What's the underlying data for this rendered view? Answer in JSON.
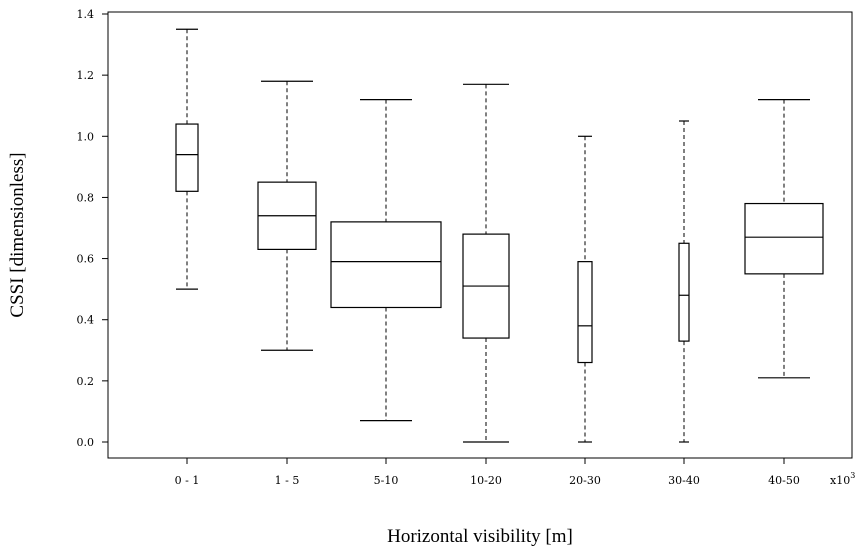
{
  "chart_data": {
    "type": "box",
    "xlabel": "Horizontal visibility [m]",
    "ylabel": "CSSI [dimensionless]",
    "x_multiplier": {
      "base": "x10",
      "exp": "3"
    },
    "ylim": [
      0.0,
      1.4
    ],
    "yticks": [
      "0.0",
      "0.2",
      "0.4",
      "0.6",
      "0.8",
      "1.0",
      "1.2",
      "1.4"
    ],
    "categories": [
      "0 - 1",
      "1 - 5",
      "5-10",
      "10-20",
      "20-30",
      "30-40",
      "40-50"
    ],
    "boxes": [
      {
        "category": "0 - 1",
        "min": 0.5,
        "q1": 0.82,
        "median": 0.94,
        "q3": 1.04,
        "max": 1.35
      },
      {
        "category": "1 - 5",
        "min": 0.3,
        "q1": 0.63,
        "median": 0.74,
        "q3": 0.85,
        "max": 1.18
      },
      {
        "category": "5-10",
        "min": 0.07,
        "q1": 0.44,
        "median": 0.59,
        "q3": 0.72,
        "max": 1.12
      },
      {
        "category": "10-20",
        "min": 0.0,
        "q1": 0.34,
        "median": 0.51,
        "q3": 0.68,
        "max": 1.17
      },
      {
        "category": "20-30",
        "min": 0.0,
        "q1": 0.26,
        "median": 0.38,
        "q3": 0.59,
        "max": 1.0
      },
      {
        "category": "30-40",
        "min": 0.0,
        "q1": 0.33,
        "median": 0.48,
        "q3": 0.65,
        "max": 1.05
      },
      {
        "category": "40-50",
        "min": 0.21,
        "q1": 0.55,
        "median": 0.67,
        "q3": 0.78,
        "max": 1.12
      }
    ],
    "grid": false,
    "legend": "none"
  }
}
